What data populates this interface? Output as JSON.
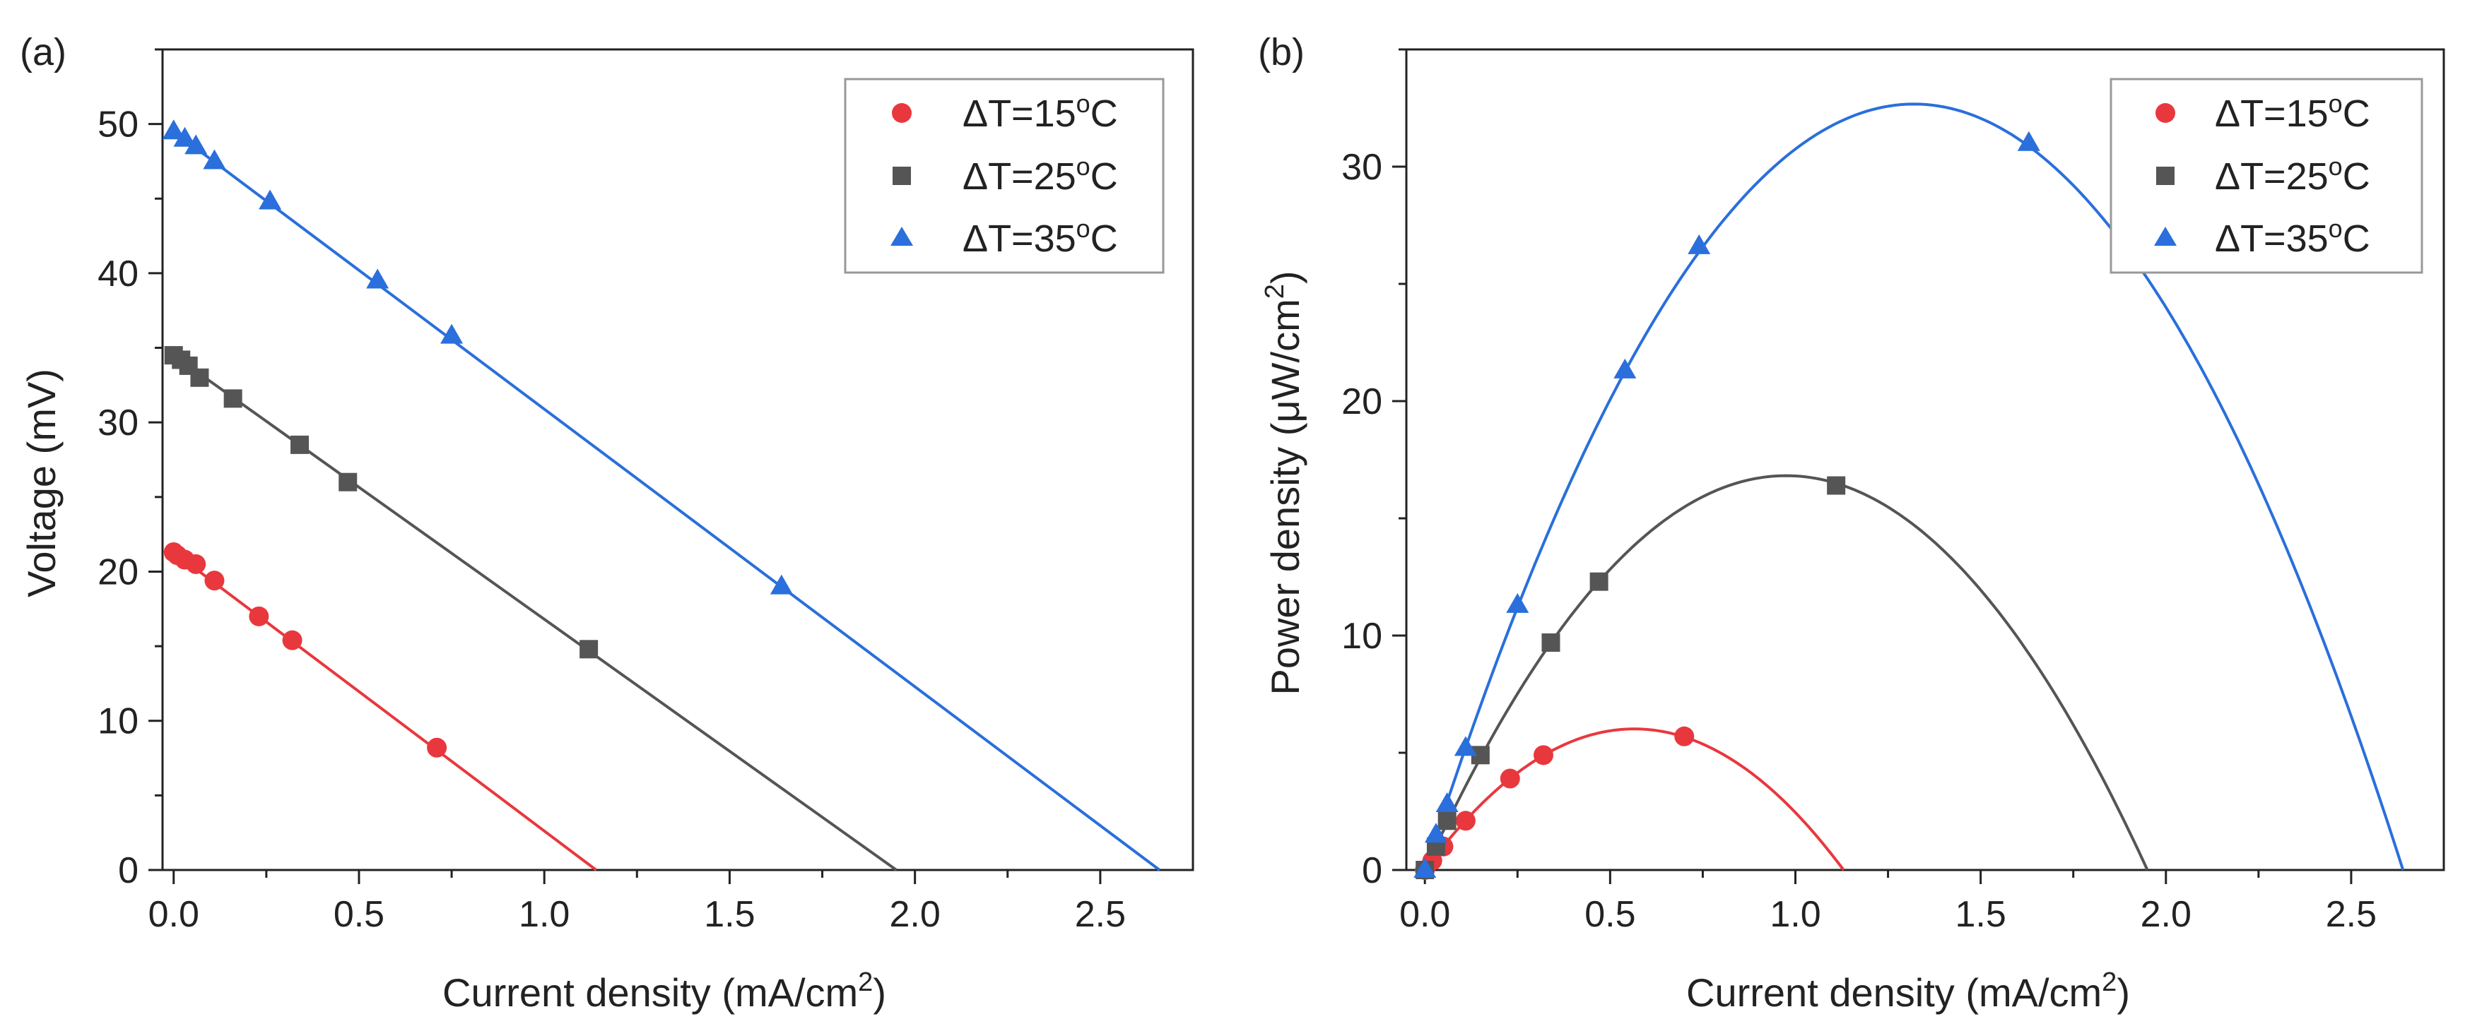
{
  "chart_data": [
    {
      "panel": "(a)",
      "type": "line+scatter",
      "xlabel": "Current density (mA/cm",
      "xlabel_sup": "2",
      "xlabel_end": ")",
      "ylabel": "Voltage (mV)",
      "xlim": [
        -0.03,
        2.75
      ],
      "ylim": [
        0,
        55
      ],
      "xticks": [
        0,
        0.5,
        1,
        1.5,
        2,
        2.5
      ],
      "xtick_labels": [
        "0.0",
        "0.5",
        "1.0",
        "1.5",
        "2.0",
        "2.5"
      ],
      "yticks": [
        0,
        10,
        20,
        30,
        40,
        50
      ],
      "ytick_labels": [
        "0",
        "10",
        "20",
        "30",
        "40",
        "50"
      ],
      "legend_position": "top-right",
      "series": [
        {
          "name": "ΔT=15",
          "legend_main": "ΔT=15",
          "legend_sup": "o",
          "legend_unit": "C",
          "color": "#e8383d",
          "marker": "circle",
          "points": [
            [
              0.0,
              21.3
            ],
            [
              0.01,
              21.1
            ],
            [
              0.03,
              20.8
            ],
            [
              0.06,
              20.5
            ],
            [
              0.11,
              19.4
            ],
            [
              0.23,
              17.0
            ],
            [
              0.32,
              15.4
            ],
            [
              0.71,
              8.2
            ]
          ],
          "fit": [
            [
              0.0,
              21.3
            ],
            [
              1.14,
              0.0
            ]
          ]
        },
        {
          "name": "ΔT=25",
          "legend_main": "ΔT=25",
          "legend_sup": "o",
          "legend_unit": "C",
          "color": "#555555",
          "marker": "square",
          "points": [
            [
              0.0,
              34.5
            ],
            [
              0.02,
              34.2
            ],
            [
              0.04,
              33.8
            ],
            [
              0.07,
              33.0
            ],
            [
              0.16,
              31.6
            ],
            [
              0.34,
              28.5
            ],
            [
              0.47,
              26.0
            ],
            [
              1.12,
              14.8
            ]
          ],
          "fit": [
            [
              0.0,
              34.5
            ],
            [
              1.95,
              0.0
            ]
          ]
        },
        {
          "name": "ΔT=35",
          "legend_main": "ΔT=35",
          "legend_sup": "o",
          "legend_unit": "C",
          "color": "#2a6fdb",
          "marker": "triangle",
          "points": [
            [
              0.0,
              49.5
            ],
            [
              0.03,
              49.0
            ],
            [
              0.06,
              48.5
            ],
            [
              0.11,
              47.5
            ],
            [
              0.26,
              44.8
            ],
            [
              0.55,
              39.5
            ],
            [
              0.75,
              35.8
            ],
            [
              1.64,
              19.0
            ]
          ],
          "fit": [
            [
              0.0,
              49.5
            ],
            [
              2.66,
              0.0
            ]
          ]
        }
      ]
    },
    {
      "panel": "(b)",
      "type": "line+scatter",
      "xlabel": "Current density (mA/cm",
      "xlabel_sup": "2",
      "xlabel_end": ")",
      "ylabel": "Power density (μW/cm",
      "ylabel_sup": "2",
      "ylabel_end": ")",
      "xlim": [
        -0.05,
        2.75
      ],
      "ylim": [
        0,
        35
      ],
      "xticks": [
        0,
        0.5,
        1,
        1.5,
        2,
        2.5
      ],
      "xtick_labels": [
        "0.0",
        "0.5",
        "1.0",
        "1.5",
        "2.0",
        "2.5"
      ],
      "yticks": [
        0,
        10,
        20,
        30
      ],
      "ytick_labels": [
        "0",
        "10",
        "20",
        "30"
      ],
      "legend_position": "top-right",
      "series": [
        {
          "name": "ΔT=15",
          "legend_main": "ΔT=15",
          "legend_sup": "o",
          "legend_unit": "C",
          "color": "#e8383d",
          "marker": "circle",
          "points": [
            [
              0.0,
              0.0
            ],
            [
              0.02,
              0.4
            ],
            [
              0.05,
              1.0
            ],
            [
              0.11,
              2.1
            ],
            [
              0.23,
              3.9
            ],
            [
              0.32,
              4.9
            ],
            [
              0.7,
              5.7
            ]
          ],
          "fit_parabola": {
            "v0": 21.3,
            "isc": 1.13
          }
        },
        {
          "name": "ΔT=25",
          "legend_main": "ΔT=25",
          "legend_sup": "o",
          "legend_unit": "C",
          "color": "#555555",
          "marker": "square",
          "points": [
            [
              0.0,
              0.0
            ],
            [
              0.03,
              1.0
            ],
            [
              0.06,
              2.1
            ],
            [
              0.15,
              4.9
            ],
            [
              0.34,
              9.7
            ],
            [
              0.47,
              12.3
            ],
            [
              1.11,
              16.4
            ]
          ],
          "fit_parabola": {
            "v0": 34.5,
            "isc": 1.95
          }
        },
        {
          "name": "ΔT=35",
          "legend_main": "ΔT=35",
          "legend_sup": "o",
          "legend_unit": "C",
          "color": "#2a6fdb",
          "marker": "triangle",
          "points": [
            [
              0.0,
              0.0
            ],
            [
              0.03,
              1.5
            ],
            [
              0.06,
              2.8
            ],
            [
              0.11,
              5.2
            ],
            [
              0.25,
              11.3
            ],
            [
              0.54,
              21.3
            ],
            [
              0.74,
              26.6
            ],
            [
              1.63,
              31.0
            ]
          ],
          "fit_parabola": {
            "v0": 49.5,
            "isc": 2.64
          }
        }
      ]
    }
  ]
}
